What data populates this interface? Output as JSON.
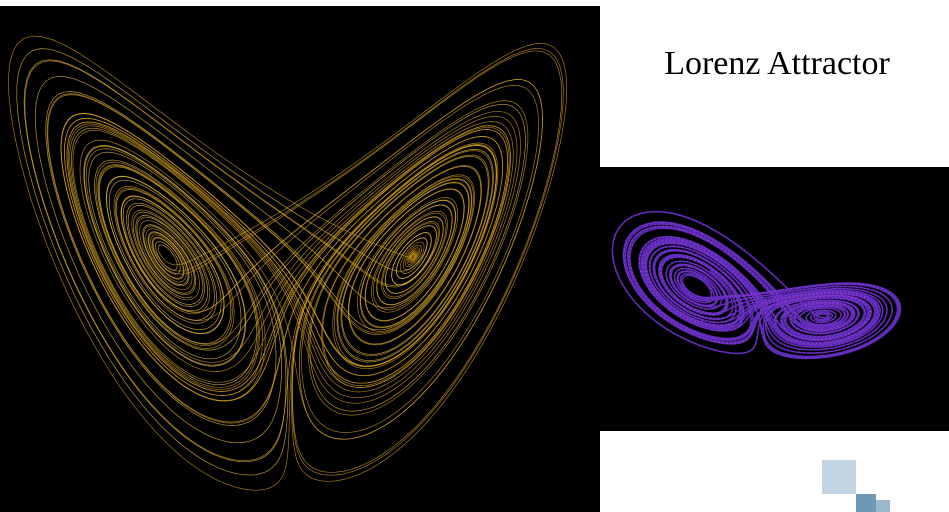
{
  "title": "Lorenz Attractor",
  "colors": {
    "background": "#ffffff",
    "main_panel": "#000000",
    "main_stroke": "#d9a21c",
    "main_stroke_bright": "#f2c640",
    "side_panel": "#000000",
    "side_fill": "#6a2fd6",
    "side_highlight": "#c24fe0",
    "logo": "#a9c3d6"
  },
  "icons": {
    "main": "lorenz-butterfly-orange-image",
    "side": "lorenz-attractor-purple-image",
    "logo": "blue-squares-logo-icon"
  }
}
